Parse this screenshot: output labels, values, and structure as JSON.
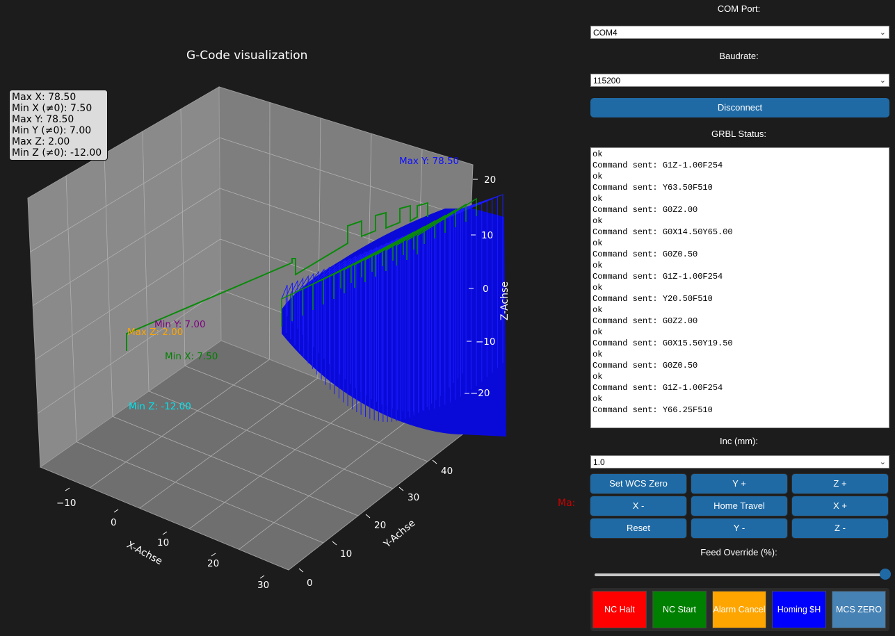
{
  "plot": {
    "title": "G-Code visualization",
    "stats": [
      "Max X: 78.50",
      "Min X (≠0): 7.50",
      "Max Y: 78.50",
      "Min Y (≠0): 7.00",
      "Max Z: 2.00",
      "Min Z (≠0): -12.00"
    ],
    "annotations": {
      "max_y": "Max Y: 78.50",
      "min_y": "Min Y: 7.00",
      "max_z": "Max Z: 2.00",
      "min_x": "Min X: 7.50",
      "min_z": "Min Z: -12.00"
    },
    "annotation_colors": {
      "max_y": "#1010ff",
      "min_y": "#800080",
      "max_z": "#ffa500",
      "min_x": "#008000",
      "min_z": "#00e5ee"
    },
    "x_axis_label": "X-Achse",
    "y_axis_label": "Y-Achse",
    "z_axis_label": "Z-Achse",
    "x_ticks": [
      "−10",
      "0",
      "10",
      "20",
      "30"
    ],
    "y_ticks": [
      "0",
      "10",
      "20",
      "30",
      "40"
    ],
    "z_ticks": [
      "20",
      "10",
      "0",
      "−10",
      "−20"
    ],
    "truncated_label": "Ma:"
  },
  "panel": {
    "com_port_label": "COM Port:",
    "com_port_value": "COM4",
    "baudrate_label": "Baudrate:",
    "baudrate_value": "115200",
    "disconnect_label": "Disconnect",
    "grbl_status_label": "GRBL Status:",
    "status_lines": [
      "ok",
      "Command sent: G1Z-1.00F254",
      "ok",
      "Command sent: Y63.50F510",
      "ok",
      "Command sent: G0Z2.00",
      "ok",
      "Command sent: G0X14.50Y65.00",
      "ok",
      "Command sent: G0Z0.50",
      "ok",
      "Command sent: G1Z-1.00F254",
      "ok",
      "Command sent: Y20.50F510",
      "ok",
      "Command sent: G0Z2.00",
      "ok",
      "Command sent: G0X15.50Y19.50",
      "ok",
      "Command sent: G0Z0.50",
      "ok",
      "Command sent: G1Z-1.00F254",
      "ok",
      "Command sent: Y66.25F510"
    ],
    "inc_label": "Inc (mm):",
    "inc_value": "1.0",
    "jog_buttons": [
      "Set WCS Zero",
      "Y +",
      "Z +",
      "X -",
      "Home Travel",
      "X +",
      "Reset",
      "Y -",
      "Z -"
    ],
    "feed_override_label": "Feed Override (%):",
    "feed_override_fraction": 1.0,
    "action_buttons": [
      {
        "label": "NC Halt",
        "color": "#ff0000"
      },
      {
        "label": "NC Start",
        "color": "#008000"
      },
      {
        "label": "Alarm Cancel",
        "color": "#ffa500"
      },
      {
        "label": "Homing $H",
        "color": "#0000ff"
      },
      {
        "label": "MCS ZERO",
        "color": "#4682b4"
      }
    ]
  }
}
